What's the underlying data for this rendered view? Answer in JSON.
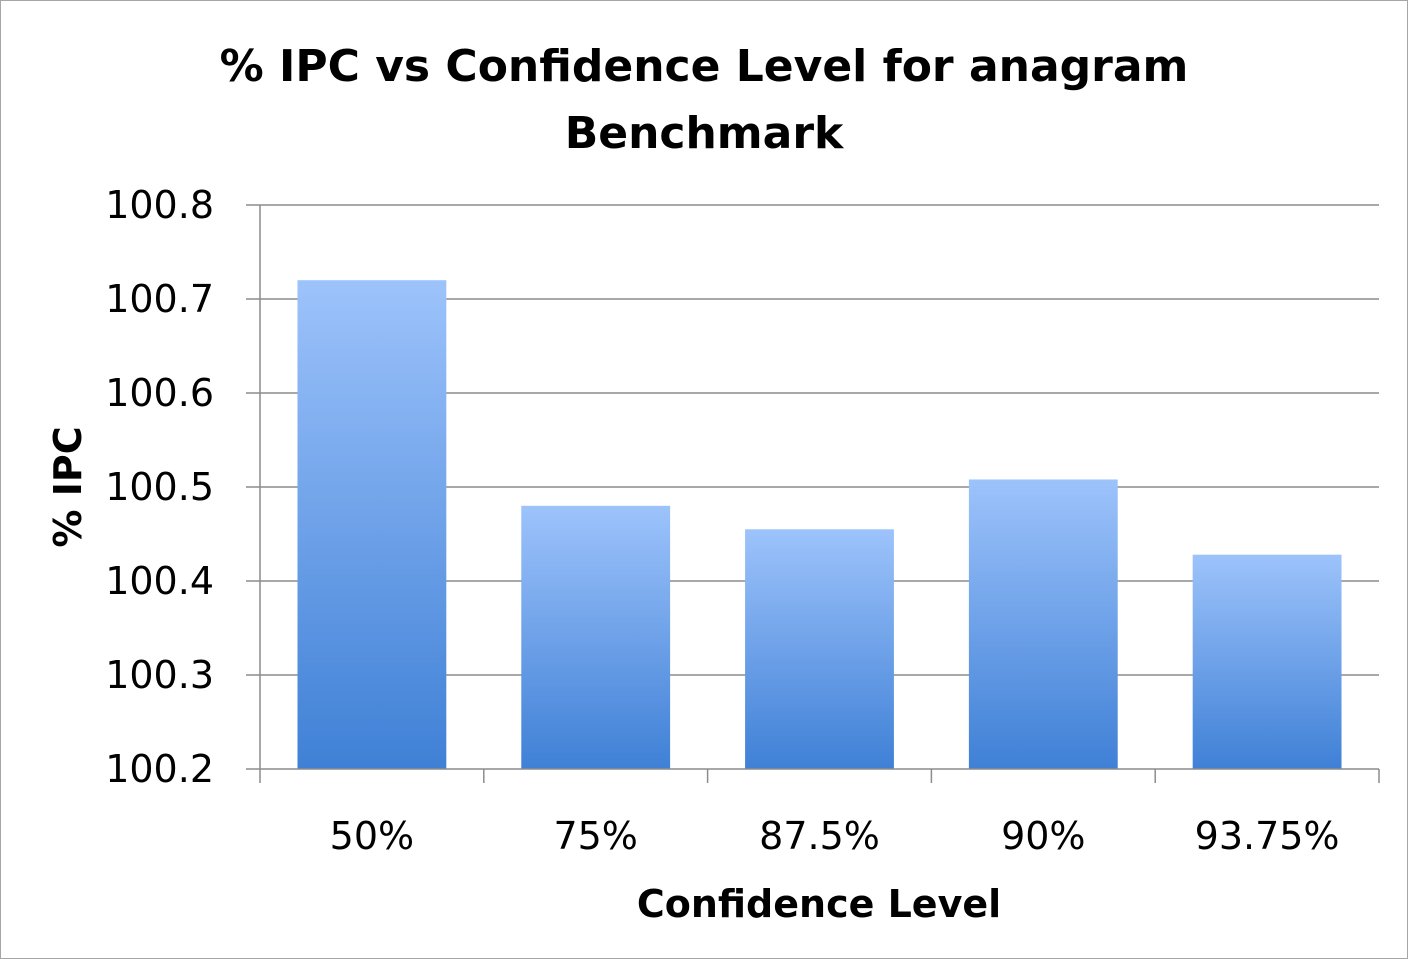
{
  "chart_data": {
    "type": "bar",
    "title": "% IPC vs Confidence Level for anagram Benchmark",
    "title_lines": [
      "% IPC vs Confidence Level for anagram",
      "Benchmark"
    ],
    "xlabel": "Confidence Level",
    "ylabel": "% IPC",
    "categories": [
      "50%",
      "75%",
      "87.5%",
      "90%",
      "93.75%"
    ],
    "values": [
      100.72,
      100.48,
      100.455,
      100.508,
      100.428
    ],
    "ylim": [
      100.2,
      100.8
    ],
    "yticks": [
      "100.2",
      "100.3",
      "100.4",
      "100.5",
      "100.6",
      "100.7",
      "100.8"
    ],
    "grid": true,
    "legend": "none",
    "colors": {
      "bar_top": "#9dc3fb",
      "bar_bottom": "#3f80d6",
      "grid": "#8c8c8c"
    }
  }
}
